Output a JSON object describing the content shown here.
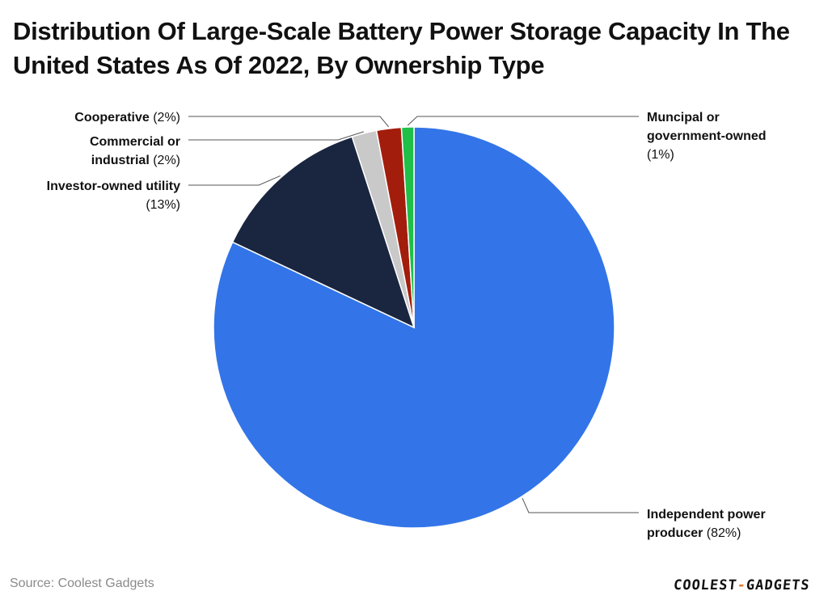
{
  "title": "Distribution Of Large-Scale Battery Power Storage Capacity In The United States As Of 2022, By Ownership Type",
  "source": "Source: Coolest Gadgets",
  "brand": {
    "left": "COOLEST",
    "dash": "-",
    "right": "GADGETS"
  },
  "chart_data": {
    "type": "pie",
    "title": "Distribution Of Large-Scale Battery Power Storage Capacity In The United States As Of 2022, By Ownership Type",
    "slices": [
      {
        "name": "Independent power producer",
        "value": 82,
        "pct_label": "(82%)",
        "color": "#3375e8",
        "label_lines": [
          [
            "Independent power",
            ""
          ],
          [
            "producer",
            "(82%)"
          ]
        ]
      },
      {
        "name": "Investor-owned utility",
        "value": 13,
        "pct_label": "(13%)",
        "color": "#1a2640",
        "label_lines": [
          [
            "Investor-owned utility",
            ""
          ],
          [
            "",
            "(13%)"
          ]
        ]
      },
      {
        "name": "Commercial or industrial",
        "value": 2,
        "pct_label": "(2%)",
        "color": "#c9c9c9",
        "label_lines": [
          [
            "Commercial or",
            ""
          ],
          [
            "industrial",
            "(2%)"
          ]
        ]
      },
      {
        "name": "Cooperative",
        "value": 2,
        "pct_label": "(2%)",
        "color": "#a31d0c",
        "label_lines": [
          [
            "Cooperative",
            "(2%)"
          ]
        ]
      },
      {
        "name": "Muncipal or government-owned",
        "value": 1,
        "pct_label": "(1%)",
        "color": "#1fbf48",
        "label_lines": [
          [
            "Muncipal or",
            ""
          ],
          [
            "government-owned",
            ""
          ],
          [
            "",
            "(1%)"
          ]
        ]
      }
    ]
  }
}
